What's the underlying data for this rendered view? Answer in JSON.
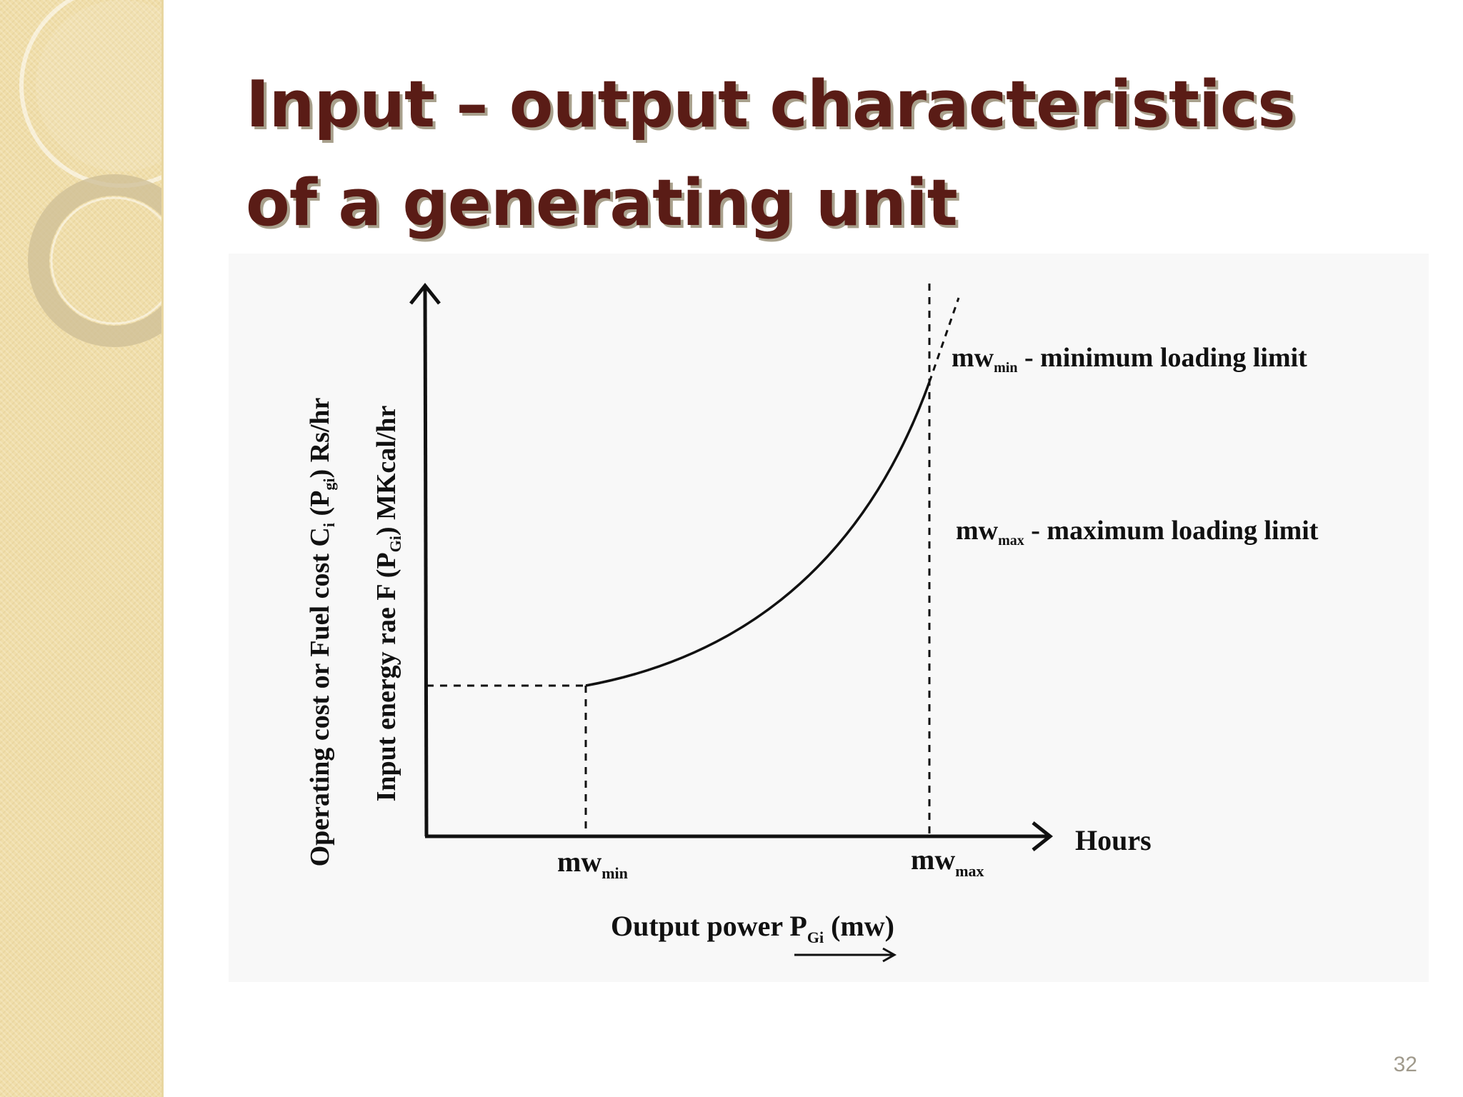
{
  "slide": {
    "title_line1": "Input – output characteristics",
    "title_line2": "of a generating unit",
    "page_number": "32"
  },
  "figure": {
    "y_label_outer": {
      "a": "Operating cost or Fuel cost C",
      "a_sub": "i",
      "b": " (P",
      "b_sub": "gi",
      "c": ") Rs/hr"
    },
    "y_label_inner": {
      "a": "Input energy rae F (P",
      "a_sub": "Gi",
      "b": ") MKcal/hr"
    },
    "x_label": {
      "a": "Output power P",
      "a_sub": "Gi",
      "b": " (mw)"
    },
    "x_arrow_label": "Hours",
    "tick_min": {
      "main": "mw",
      "sub": "min"
    },
    "tick_max": {
      "main": "mw",
      "sub": "max"
    },
    "legend": [
      {
        "main": "mw",
        "sub": "min",
        "text": " - minimum loading limit"
      },
      {
        "main": "mw",
        "sub": "max",
        "text": " - maximum loading limit"
      }
    ]
  },
  "colors": {
    "title": "#5a1c16",
    "sidebar": "#f0deaa",
    "ink": "#111111"
  }
}
